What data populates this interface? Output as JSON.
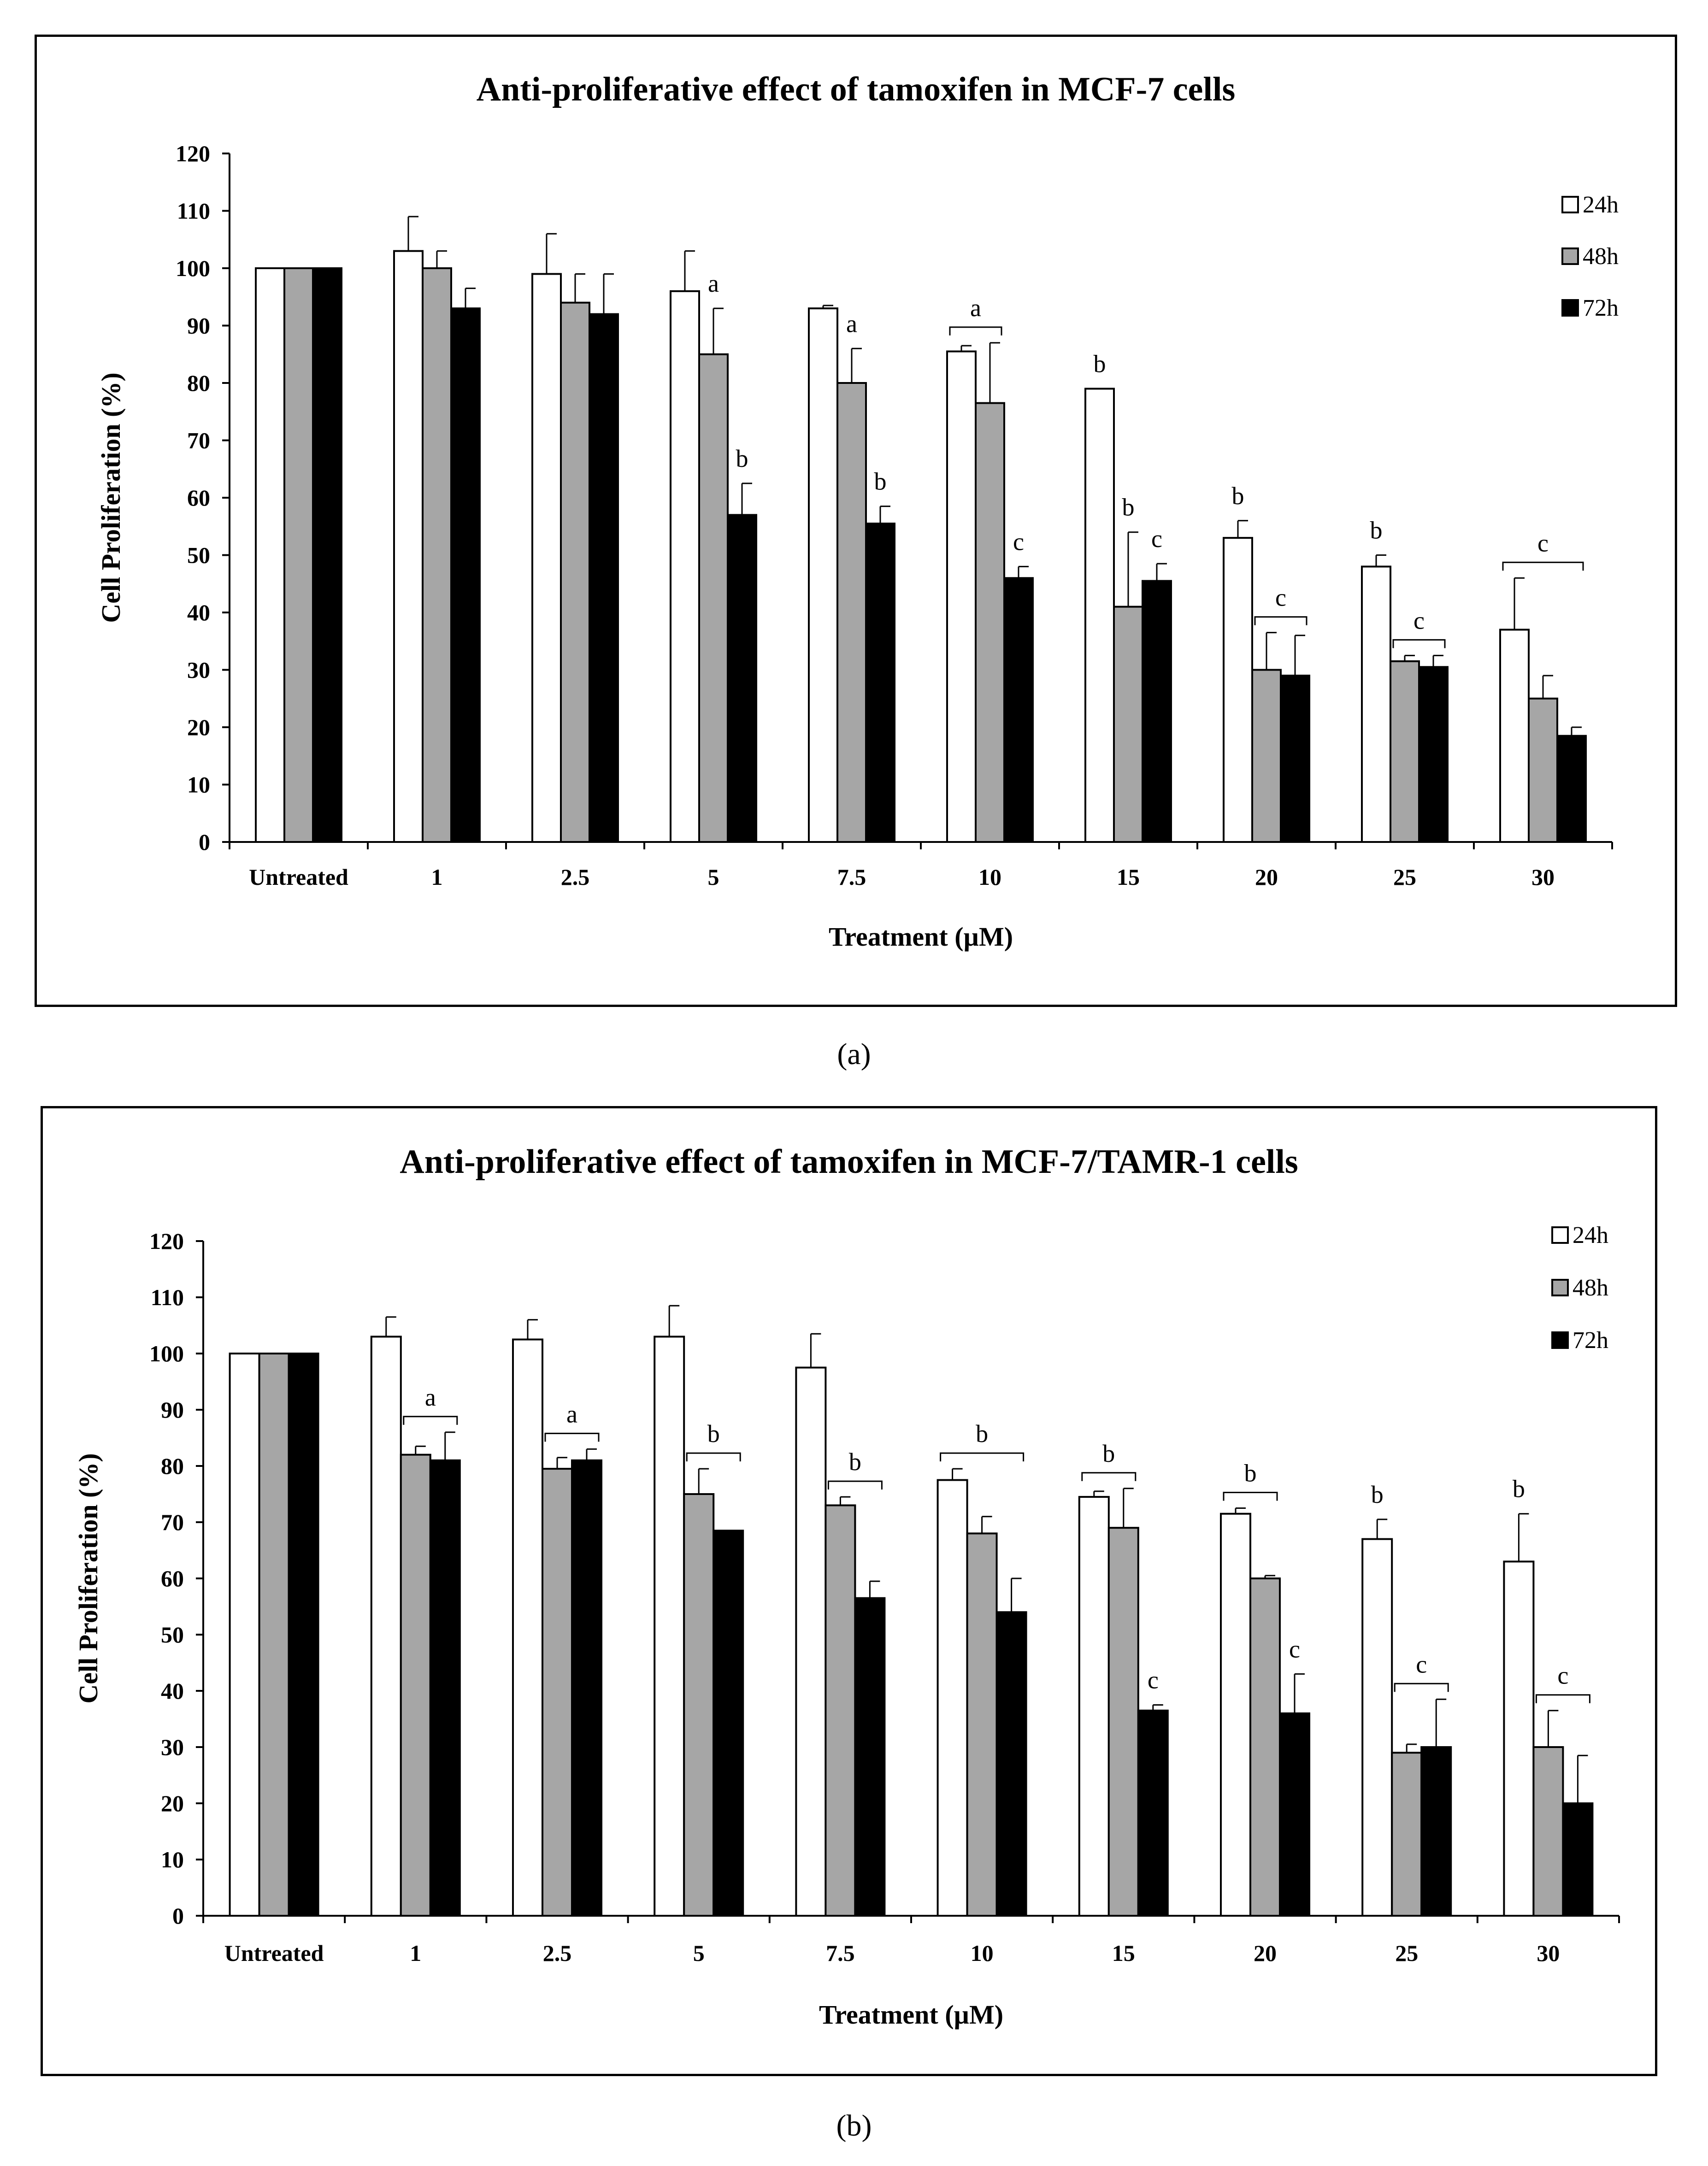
{
  "colors": {
    "h24": "#ffffff",
    "h48": "#a6a6a6",
    "h72": "#000000",
    "axis": "#000000"
  },
  "chart_data": [
    {
      "type": "bar",
      "title": "Anti-proliferative effect of tamoxifen in MCF-7 cells",
      "xlabel": "Treatment (µM)",
      "ylabel": "Cell Proliferation (%)",
      "ylim": [
        0,
        120
      ],
      "yticks": [
        "0",
        "10",
        "20",
        "30",
        "40",
        "50",
        "60",
        "70",
        "80",
        "90",
        "100",
        "110",
        "120"
      ],
      "categories": [
        "Untreated",
        "1",
        "2.5",
        "5",
        "7.5",
        "10",
        "15",
        "20",
        "25",
        "30"
      ],
      "legend_position": "top-right",
      "series": [
        {
          "name": "24h",
          "values": [
            100,
            103,
            99,
            96,
            93,
            85.5,
            79,
            53,
            48,
            37
          ],
          "errors": [
            0,
            6,
            7,
            7,
            0.5,
            1,
            0,
            3,
            2,
            9
          ]
        },
        {
          "name": "48h",
          "values": [
            100,
            100,
            94,
            85,
            80,
            76.5,
            41,
            30,
            31.5,
            25
          ],
          "errors": [
            0,
            3,
            5,
            8,
            6,
            10.5,
            13,
            6.5,
            1,
            4
          ]
        },
        {
          "name": "72h",
          "values": [
            100,
            93,
            92,
            57,
            55.5,
            46,
            45.5,
            29,
            30.5,
            18.5
          ],
          "errors": [
            0,
            3.5,
            7,
            5.5,
            3,
            2,
            3,
            7,
            2,
            1.5
          ]
        }
      ],
      "annotations": [
        {
          "label": "a",
          "cat": 3,
          "bars": [
            1
          ]
        },
        {
          "label": "b",
          "cat": 3,
          "bars": [
            2
          ]
        },
        {
          "label": "a",
          "cat": 4,
          "bars": [
            1
          ]
        },
        {
          "label": "b",
          "cat": 4,
          "bars": [
            2
          ]
        },
        {
          "label": "a",
          "cat": 5,
          "bars": [
            0,
            1
          ]
        },
        {
          "label": "c",
          "cat": 5,
          "bars": [
            2
          ]
        },
        {
          "label": "b",
          "cat": 6,
          "bars": [
            0
          ]
        },
        {
          "label": "b",
          "cat": 6,
          "bars": [
            1
          ]
        },
        {
          "label": "c",
          "cat": 6,
          "bars": [
            2
          ]
        },
        {
          "label": "b",
          "cat": 7,
          "bars": [
            0
          ]
        },
        {
          "label": "c",
          "cat": 7,
          "bars": [
            1,
            2
          ]
        },
        {
          "label": "b",
          "cat": 8,
          "bars": [
            0
          ]
        },
        {
          "label": "c",
          "cat": 8,
          "bars": [
            1,
            2
          ]
        },
        {
          "label": "c",
          "cat": 9,
          "bars": [
            0,
            2
          ]
        }
      ]
    },
    {
      "type": "bar",
      "title": "Anti-proliferative effect of tamoxifen in MCF-7/TAMR-1 cells",
      "xlabel": "Treatment (µM)",
      "ylabel": "Cell Proliferation (%)",
      "ylim": [
        0,
        120
      ],
      "yticks": [
        "0",
        "10",
        "20",
        "30",
        "40",
        "50",
        "60",
        "70",
        "80",
        "90",
        "100",
        "110",
        "120"
      ],
      "categories": [
        "Untreated",
        "1",
        "2.5",
        "5",
        "7.5",
        "10",
        "15",
        "20",
        "25",
        "30"
      ],
      "legend_position": "top-right",
      "series": [
        {
          "name": "24h",
          "values": [
            100,
            103,
            102.5,
            103,
            97.5,
            77.5,
            74.5,
            71.5,
            67,
            63
          ],
          "errors": [
            0,
            3.5,
            3.5,
            5.5,
            6,
            2,
            1,
            1,
            3.5,
            8.5
          ]
        },
        {
          "name": "48h",
          "values": [
            100,
            82,
            79.5,
            75,
            73,
            68,
            69,
            60,
            29,
            30
          ],
          "errors": [
            0,
            1.5,
            2,
            4.5,
            1.5,
            3,
            7,
            0.5,
            1.5,
            6.5
          ]
        },
        {
          "name": "72h",
          "values": [
            100,
            81,
            81,
            68.5,
            56.5,
            54,
            36.5,
            36,
            30,
            20
          ],
          "errors": [
            0,
            5,
            2,
            0,
            3,
            6,
            1,
            7,
            8.5,
            8.5
          ]
        }
      ],
      "annotations": [
        {
          "label": "a",
          "cat": 1,
          "bars": [
            1,
            2
          ]
        },
        {
          "label": "a",
          "cat": 2,
          "bars": [
            1,
            2
          ]
        },
        {
          "label": "b",
          "cat": 3,
          "bars": [
            1,
            2
          ]
        },
        {
          "label": "b",
          "cat": 4,
          "bars": [
            1,
            2
          ]
        },
        {
          "label": "b",
          "cat": 5,
          "bars": [
            0,
            2
          ]
        },
        {
          "label": "b",
          "cat": 6,
          "bars": [
            0,
            1
          ]
        },
        {
          "label": "c",
          "cat": 6,
          "bars": [
            2
          ]
        },
        {
          "label": "b",
          "cat": 7,
          "bars": [
            0,
            1
          ]
        },
        {
          "label": "c",
          "cat": 7,
          "bars": [
            2
          ]
        },
        {
          "label": "b",
          "cat": 8,
          "bars": [
            0
          ]
        },
        {
          "label": "c",
          "cat": 8,
          "bars": [
            1,
            2
          ]
        },
        {
          "label": "b",
          "cat": 9,
          "bars": [
            0
          ]
        },
        {
          "label": "c",
          "cat": 9,
          "bars": [
            1,
            2
          ]
        }
      ]
    }
  ],
  "sublabels": [
    "(a)",
    "(b)"
  ]
}
